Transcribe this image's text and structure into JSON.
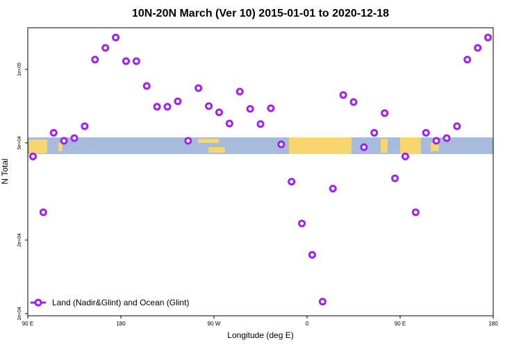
{
  "chart_data": {
    "type": "scatter",
    "title": "10N-20N March (Ver 10)   2015-01-01 to 2020-12-18",
    "xlabel": "Longitude (deg E)",
    "ylabel": "N Total",
    "log_y": true,
    "legend": "lower left",
    "xlim": [
      90,
      540
    ],
    "ylim": [
      9800,
      148000
    ],
    "xticks": [
      {
        "value": 90,
        "label": "90 E"
      },
      {
        "value": 180,
        "label": "180"
      },
      {
        "value": 270,
        "label": "90 W"
      },
      {
        "value": 360,
        "label": "0"
      },
      {
        "value": 450,
        "label": "90 E"
      },
      {
        "value": 540,
        "label": "180"
      }
    ],
    "yticks": [
      {
        "value": 10000,
        "label": "1e+04"
      },
      {
        "value": 20000,
        "label": "2e+04"
      },
      {
        "value": 50000,
        "label": "5e+04"
      },
      {
        "value": 100000,
        "label": "1e+05"
      }
    ],
    "series": [
      {
        "name": "Land (Nadir&Glint) and Ocean (Glint)",
        "color": "#a020f0",
        "x": [
          95,
          105,
          115,
          125,
          135,
          145,
          155,
          165,
          175,
          185,
          195,
          205,
          215,
          225,
          235,
          245,
          255,
          265,
          275,
          285,
          295,
          305,
          315,
          325,
          335,
          345,
          355,
          365,
          375,
          385,
          395,
          405,
          415,
          425,
          435,
          445,
          455,
          465,
          475,
          485,
          495,
          505,
          515,
          525,
          535
        ],
        "values": [
          44000,
          26000,
          55000,
          51000,
          52300,
          58500,
          109600,
          122400,
          135000,
          108000,
          108000,
          85500,
          70300,
          70300,
          74000,
          51000,
          83800,
          70700,
          66700,
          60000,
          81100,
          68900,
          59700,
          69300,
          49300,
          34700,
          23400,
          17400,
          11200,
          32500,
          78500,
          73500,
          48000,
          55000,
          66200,
          35800,
          44000,
          26000,
          55000,
          51000,
          52300,
          58500,
          109600,
          122400,
          135000
        ]
      }
    ]
  }
}
